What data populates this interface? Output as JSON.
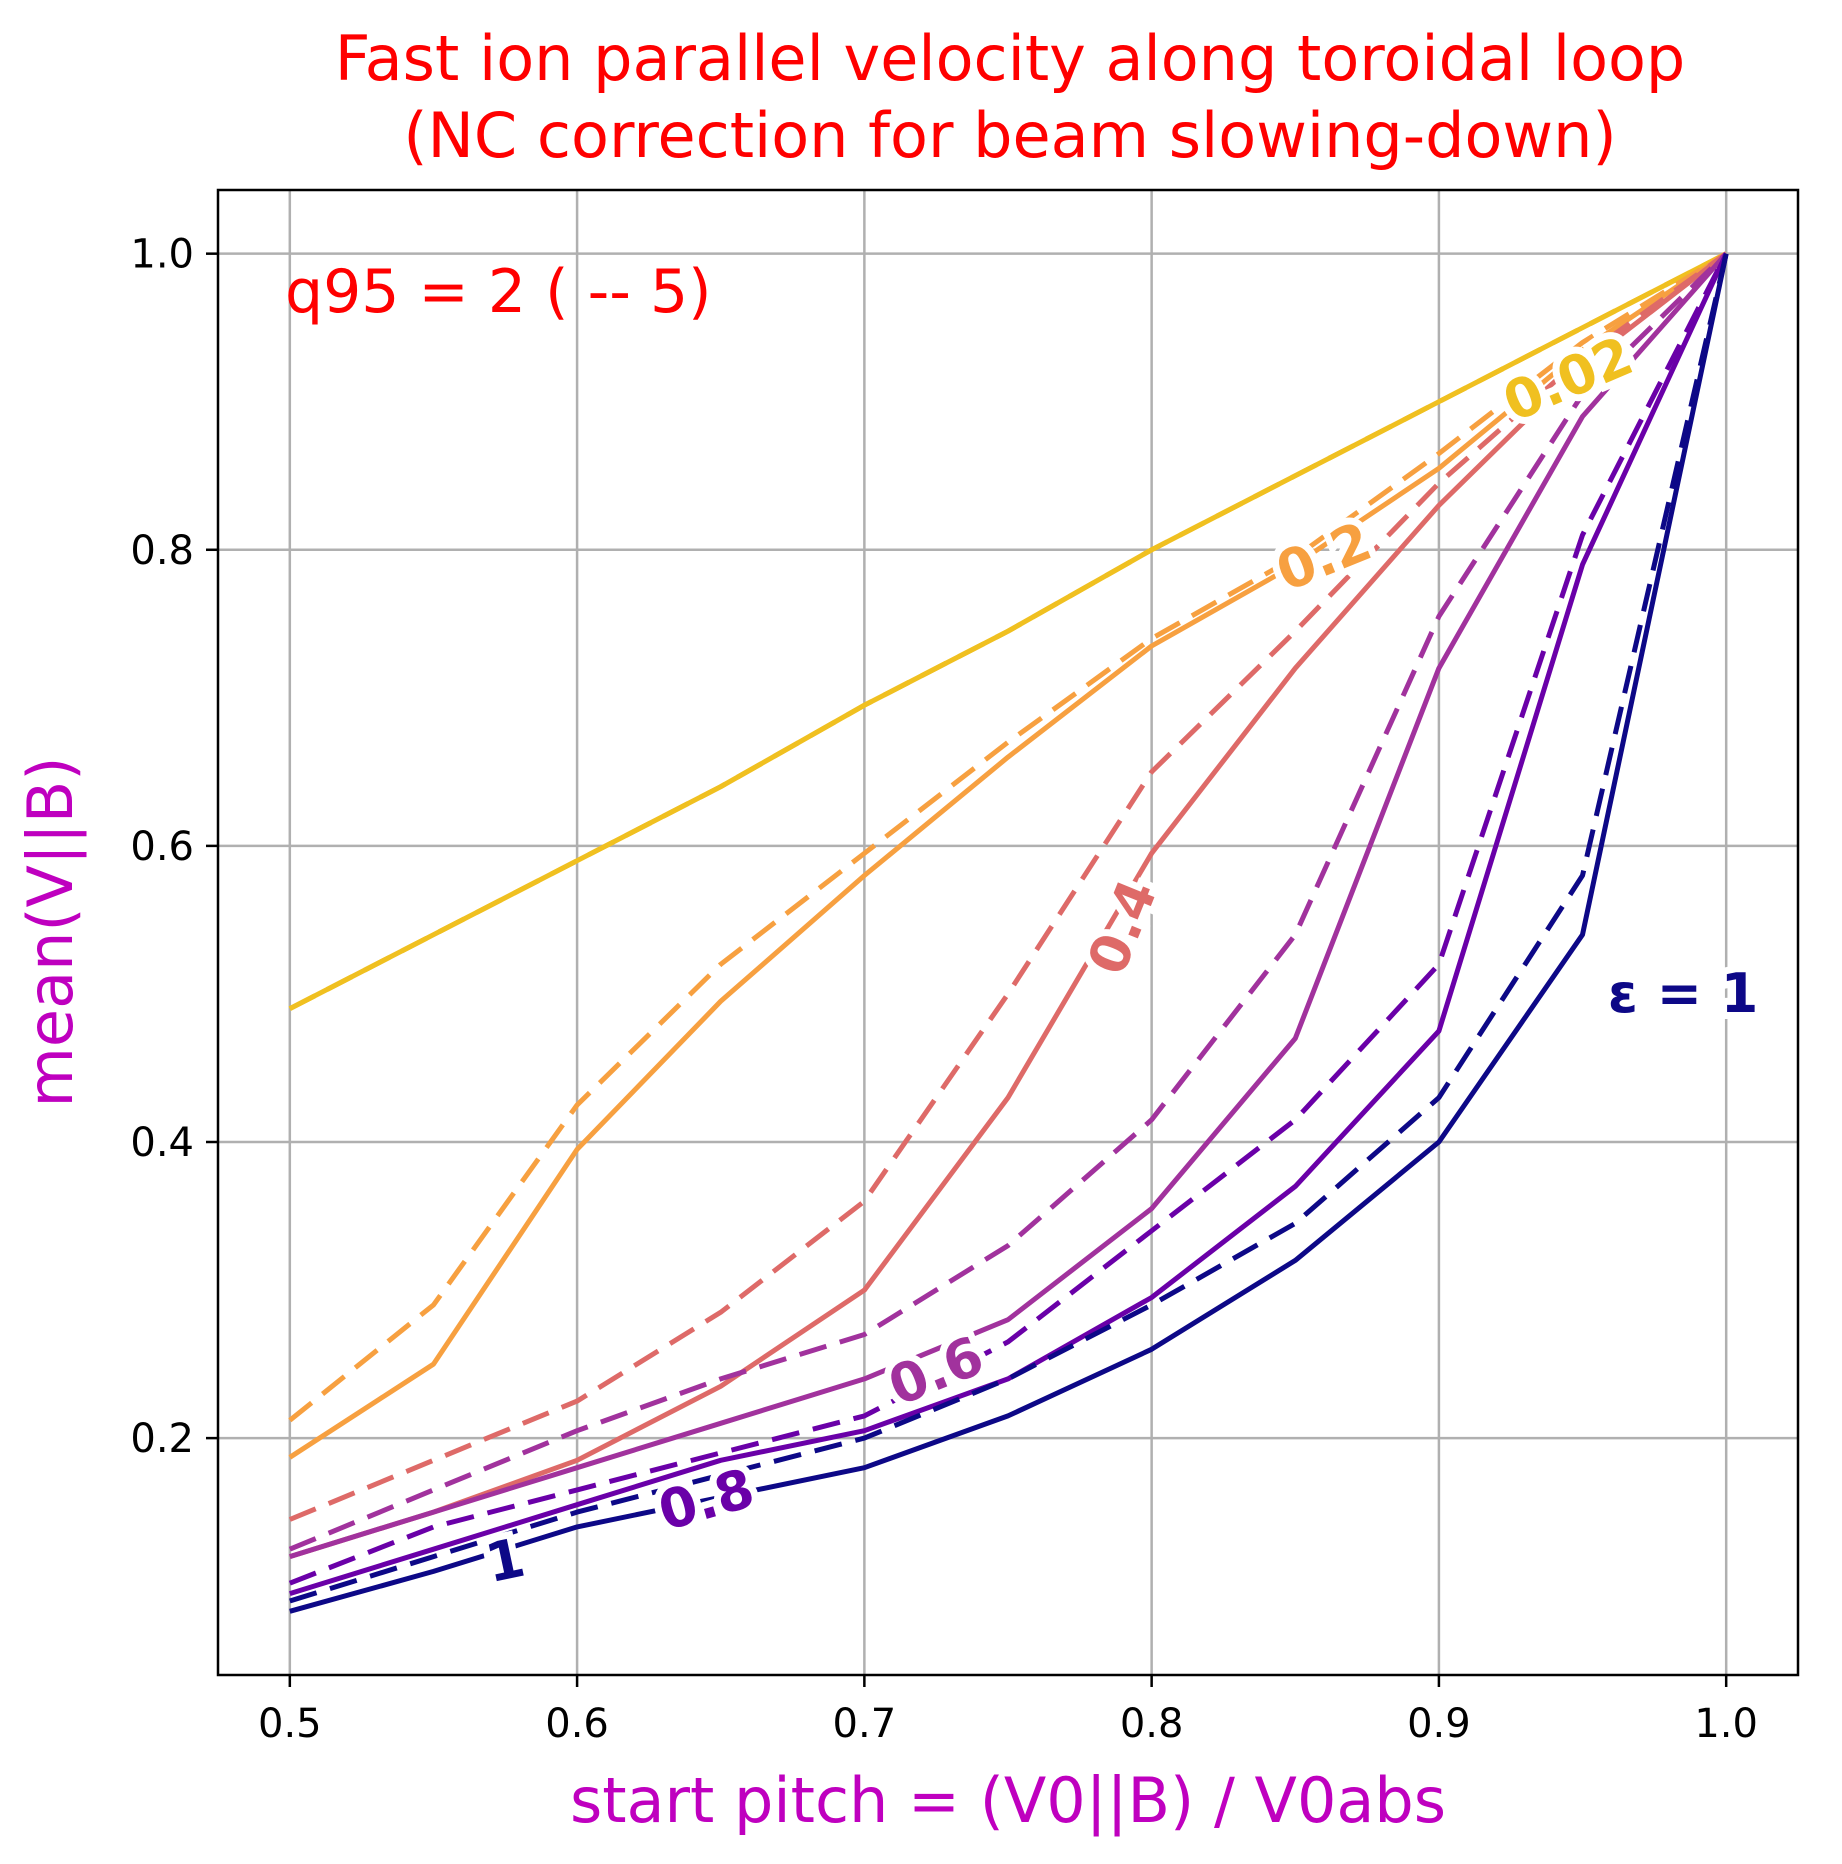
{
  "chart_data": {
    "type": "line",
    "title_line1": "Fast ion parallel velocity along toroidal loop",
    "title_line2": "(NC correction for beam slowing-down)",
    "xlabel": "start pitch = (V0||B) / V0abs",
    "ylabel": "mean(V||B)",
    "annotation": "q95 = 2 ( -- 5)",
    "xlim": [
      0.475,
      1.025
    ],
    "ylim": [
      0.04,
      1.043
    ],
    "x_ticks": [
      "0.5",
      "0.6",
      "0.7",
      "0.8",
      "0.9",
      "1.0"
    ],
    "y_ticks": [
      "0.2",
      "0.4",
      "0.6",
      "0.8",
      "1.0"
    ],
    "grid": true,
    "x": [
      0.5,
      0.55,
      0.6,
      0.65,
      0.7,
      0.75,
      0.8,
      0.85,
      0.9,
      0.95,
      1.0
    ],
    "series": [
      {
        "label": "0.02",
        "style": "solid",
        "color": "#f0c020",
        "values": [
          0.49,
          0.54,
          0.59,
          0.64,
          0.695,
          0.745,
          0.8,
          0.85,
          0.9,
          0.95,
          1.0
        ]
      },
      {
        "label": "0.02",
        "style": "dashed",
        "color": "#f0c020",
        "values": [
          0.49,
          0.54,
          0.59,
          0.64,
          0.695,
          0.745,
          0.8,
          0.85,
          0.9,
          0.95,
          1.0
        ]
      },
      {
        "label": "0.2",
        "style": "solid",
        "color": "#f7a040",
        "values": [
          0.187,
          0.25,
          0.395,
          0.495,
          0.58,
          0.66,
          0.735,
          0.79,
          0.855,
          0.935,
          1.0
        ]
      },
      {
        "label": "0.2",
        "style": "dashed",
        "color": "#f7a040",
        "values": [
          0.212,
          0.29,
          0.425,
          0.52,
          0.595,
          0.67,
          0.74,
          0.795,
          0.865,
          0.94,
          1.0
        ]
      },
      {
        "label": "0.4",
        "style": "solid",
        "color": "#de6a68",
        "values": [
          0.12,
          0.15,
          0.185,
          0.235,
          0.3,
          0.43,
          0.595,
          0.72,
          0.83,
          0.925,
          1.0
        ]
      },
      {
        "label": "0.4",
        "style": "dashed",
        "color": "#de6a68",
        "values": [
          0.145,
          0.185,
          0.225,
          0.285,
          0.36,
          0.5,
          0.65,
          0.745,
          0.845,
          0.93,
          1.0
        ]
      },
      {
        "label": "0.6",
        "style": "solid",
        "color": "#a1329d",
        "values": [
          0.12,
          0.15,
          0.18,
          0.21,
          0.24,
          0.28,
          0.355,
          0.47,
          0.72,
          0.89,
          1.0
        ]
      },
      {
        "label": "0.6",
        "style": "dashed",
        "color": "#a1329d",
        "values": [
          0.125,
          0.165,
          0.205,
          0.24,
          0.27,
          0.33,
          0.415,
          0.54,
          0.755,
          0.905,
          1.0
        ]
      },
      {
        "label": "0.8",
        "style": "solid",
        "color": "#6a00a8",
        "values": [
          0.095,
          0.125,
          0.155,
          0.185,
          0.205,
          0.24,
          0.295,
          0.37,
          0.475,
          0.79,
          1.0
        ]
      },
      {
        "label": "0.8",
        "style": "dashed",
        "color": "#6a00a8",
        "values": [
          0.102,
          0.14,
          0.165,
          0.19,
          0.215,
          0.265,
          0.34,
          0.415,
          0.52,
          0.81,
          1.0
        ]
      },
      {
        "label": "1",
        "style": "solid",
        "color": "#0d0887",
        "values": [
          0.083,
          0.11,
          0.14,
          0.16,
          0.18,
          0.215,
          0.26,
          0.32,
          0.4,
          0.54,
          1.0
        ]
      },
      {
        "label": "1",
        "style": "dashed",
        "color": "#0d0887",
        "values": [
          0.09,
          0.12,
          0.15,
          0.175,
          0.2,
          0.24,
          0.29,
          0.345,
          0.43,
          0.58,
          1.0
        ]
      }
    ],
    "curve_labels": [
      {
        "text": "0.02",
        "x": 0.945,
        "y": 0.915,
        "angle_deg": -23,
        "color": "#f0c020"
      },
      {
        "text": "0.2",
        "x": 0.86,
        "y": 0.795,
        "angle_deg": -22,
        "color": "#f7a040"
      },
      {
        "text": "0.4",
        "x": 0.79,
        "y": 0.545,
        "angle_deg": -68,
        "color": "#de6a68"
      },
      {
        "text": "0.6",
        "x": 0.725,
        "y": 0.245,
        "angle_deg": -22,
        "color": "#a1329d"
      },
      {
        "text": "0.8",
        "x": 0.645,
        "y": 0.158,
        "angle_deg": -16,
        "color": "#6a00a8"
      },
      {
        "text": "1",
        "x": 0.575,
        "y": 0.117,
        "angle_deg": -12,
        "color": "#0d0887"
      },
      {
        "text": "ε = 1",
        "x": 0.985,
        "y": 0.5,
        "angle_deg": 0,
        "color": "#0d0887"
      }
    ]
  }
}
